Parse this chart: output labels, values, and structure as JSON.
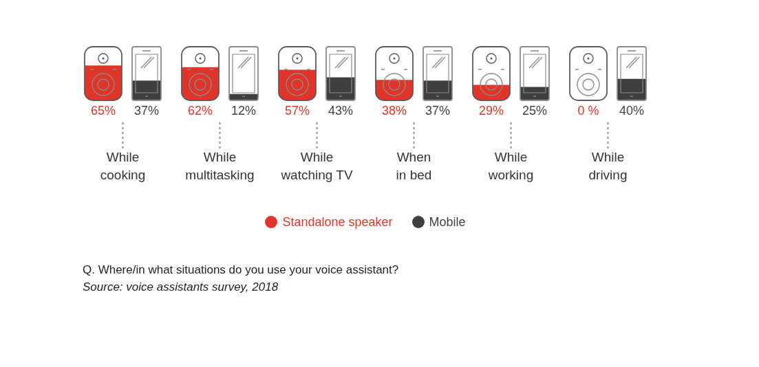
{
  "chart_data": {
    "type": "bar",
    "categories": [
      "While cooking",
      "While multitasking",
      "While watching TV",
      "When in bed",
      "While working",
      "While driving"
    ],
    "series": [
      {
        "name": "Standalone speaker",
        "color": "#e2352a",
        "values": [
          65,
          62,
          57,
          38,
          29,
          0
        ],
        "value_labels": [
          "65%",
          "62%",
          "57%",
          "38%",
          "29%",
          "0 %"
        ]
      },
      {
        "name": "Mobile",
        "color": "#3f3f3f",
        "values": [
          37,
          12,
          43,
          37,
          25,
          40
        ],
        "value_labels": [
          "37%",
          "12%",
          "43%",
          "37%",
          "25%",
          "40%"
        ]
      }
    ],
    "ylim": [
      0,
      100
    ],
    "tick_labels": "x",
    "legend": "bottom",
    "annotations": [
      "Q. Where/in what situations do you use your voice assistant?",
      "Source: voice assistants survey, 2018"
    ]
  }
}
